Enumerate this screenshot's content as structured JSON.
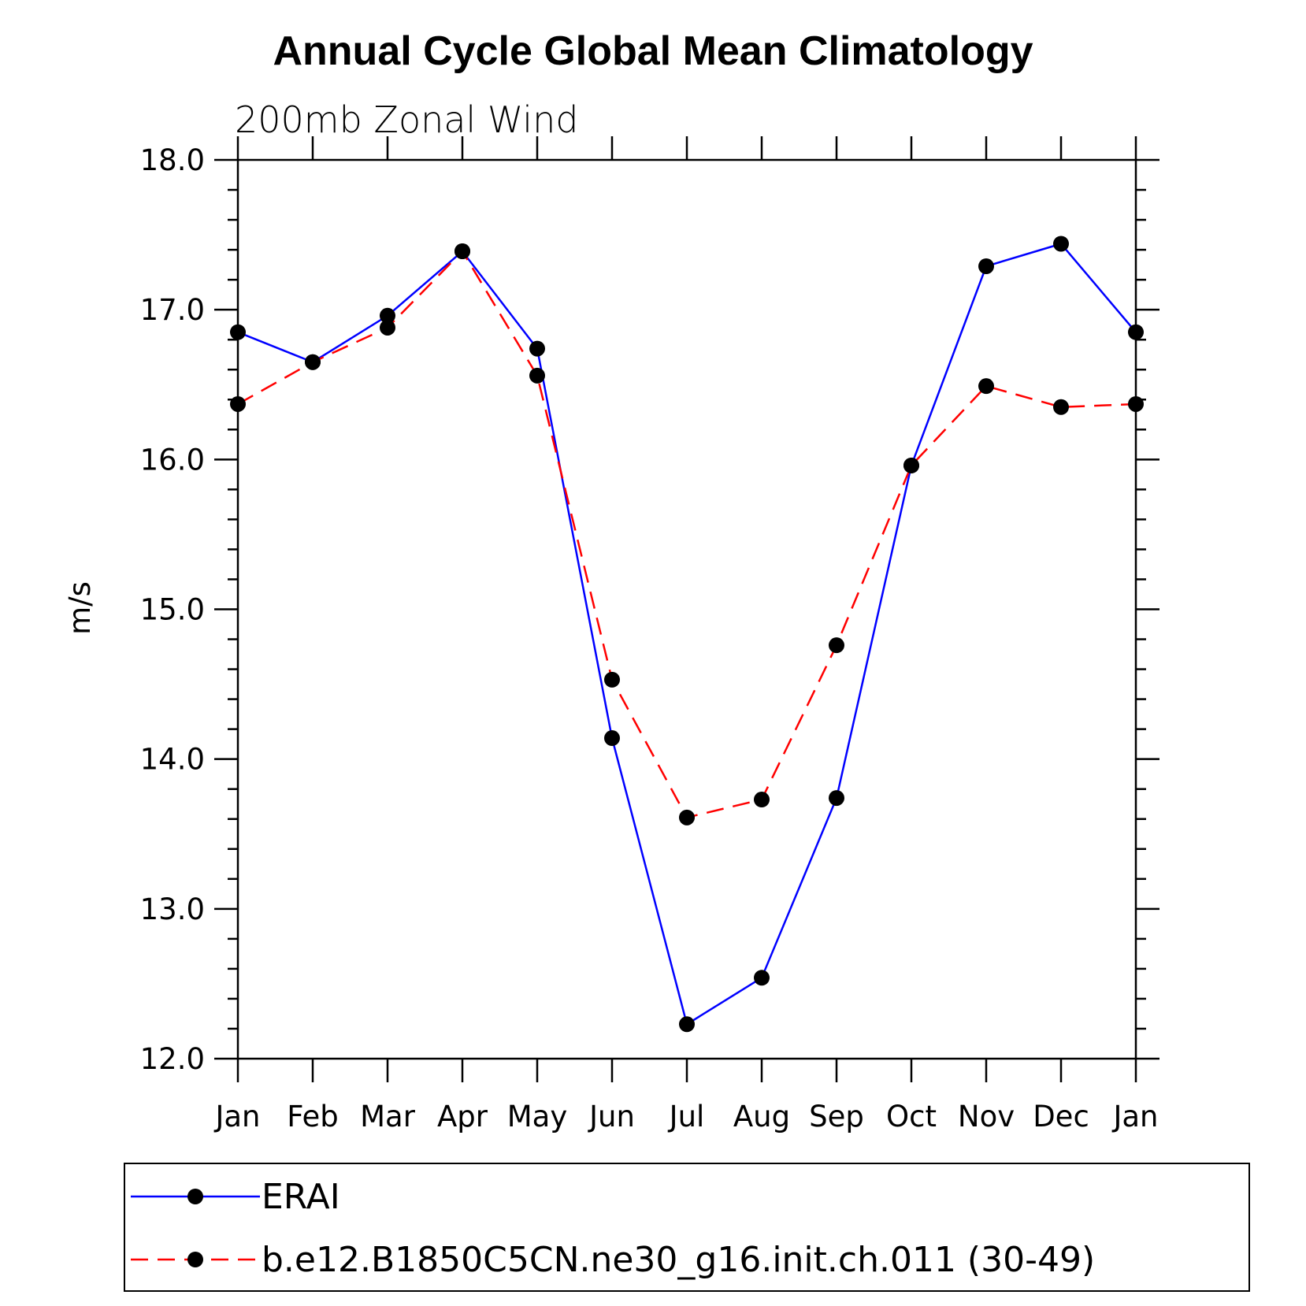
{
  "chart_data": {
    "type": "line",
    "title": "Annual Cycle Global Mean Climatology",
    "subtitle": "200mb Zonal Wind",
    "ylabel": "m/s",
    "xlabel": "",
    "ylim": [
      12.0,
      18.0
    ],
    "yticks": [
      "12.0",
      "13.0",
      "14.0",
      "15.0",
      "16.0",
      "17.0",
      "18.0"
    ],
    "categories": [
      "Jan",
      "Feb",
      "Mar",
      "Apr",
      "May",
      "Jun",
      "Jul",
      "Aug",
      "Sep",
      "Oct",
      "Nov",
      "Dec",
      "Jan"
    ],
    "grid": false,
    "legend_position": "bottom",
    "series": [
      {
        "name": "ERAI",
        "color": "#0000ff",
        "style": "solid",
        "values": [
          16.85,
          16.65,
          16.96,
          17.39,
          16.74,
          14.14,
          12.23,
          12.54,
          13.74,
          15.96,
          17.29,
          17.44,
          16.85
        ]
      },
      {
        "name": "b.e12.B1850C5CN.ne30_g16.init.ch.011 (30-49)",
        "color": "#ff0000",
        "style": "dashed",
        "values": [
          16.37,
          16.65,
          16.88,
          17.39,
          16.56,
          14.53,
          13.61,
          13.73,
          14.76,
          15.96,
          16.49,
          16.35,
          16.37
        ]
      }
    ]
  }
}
